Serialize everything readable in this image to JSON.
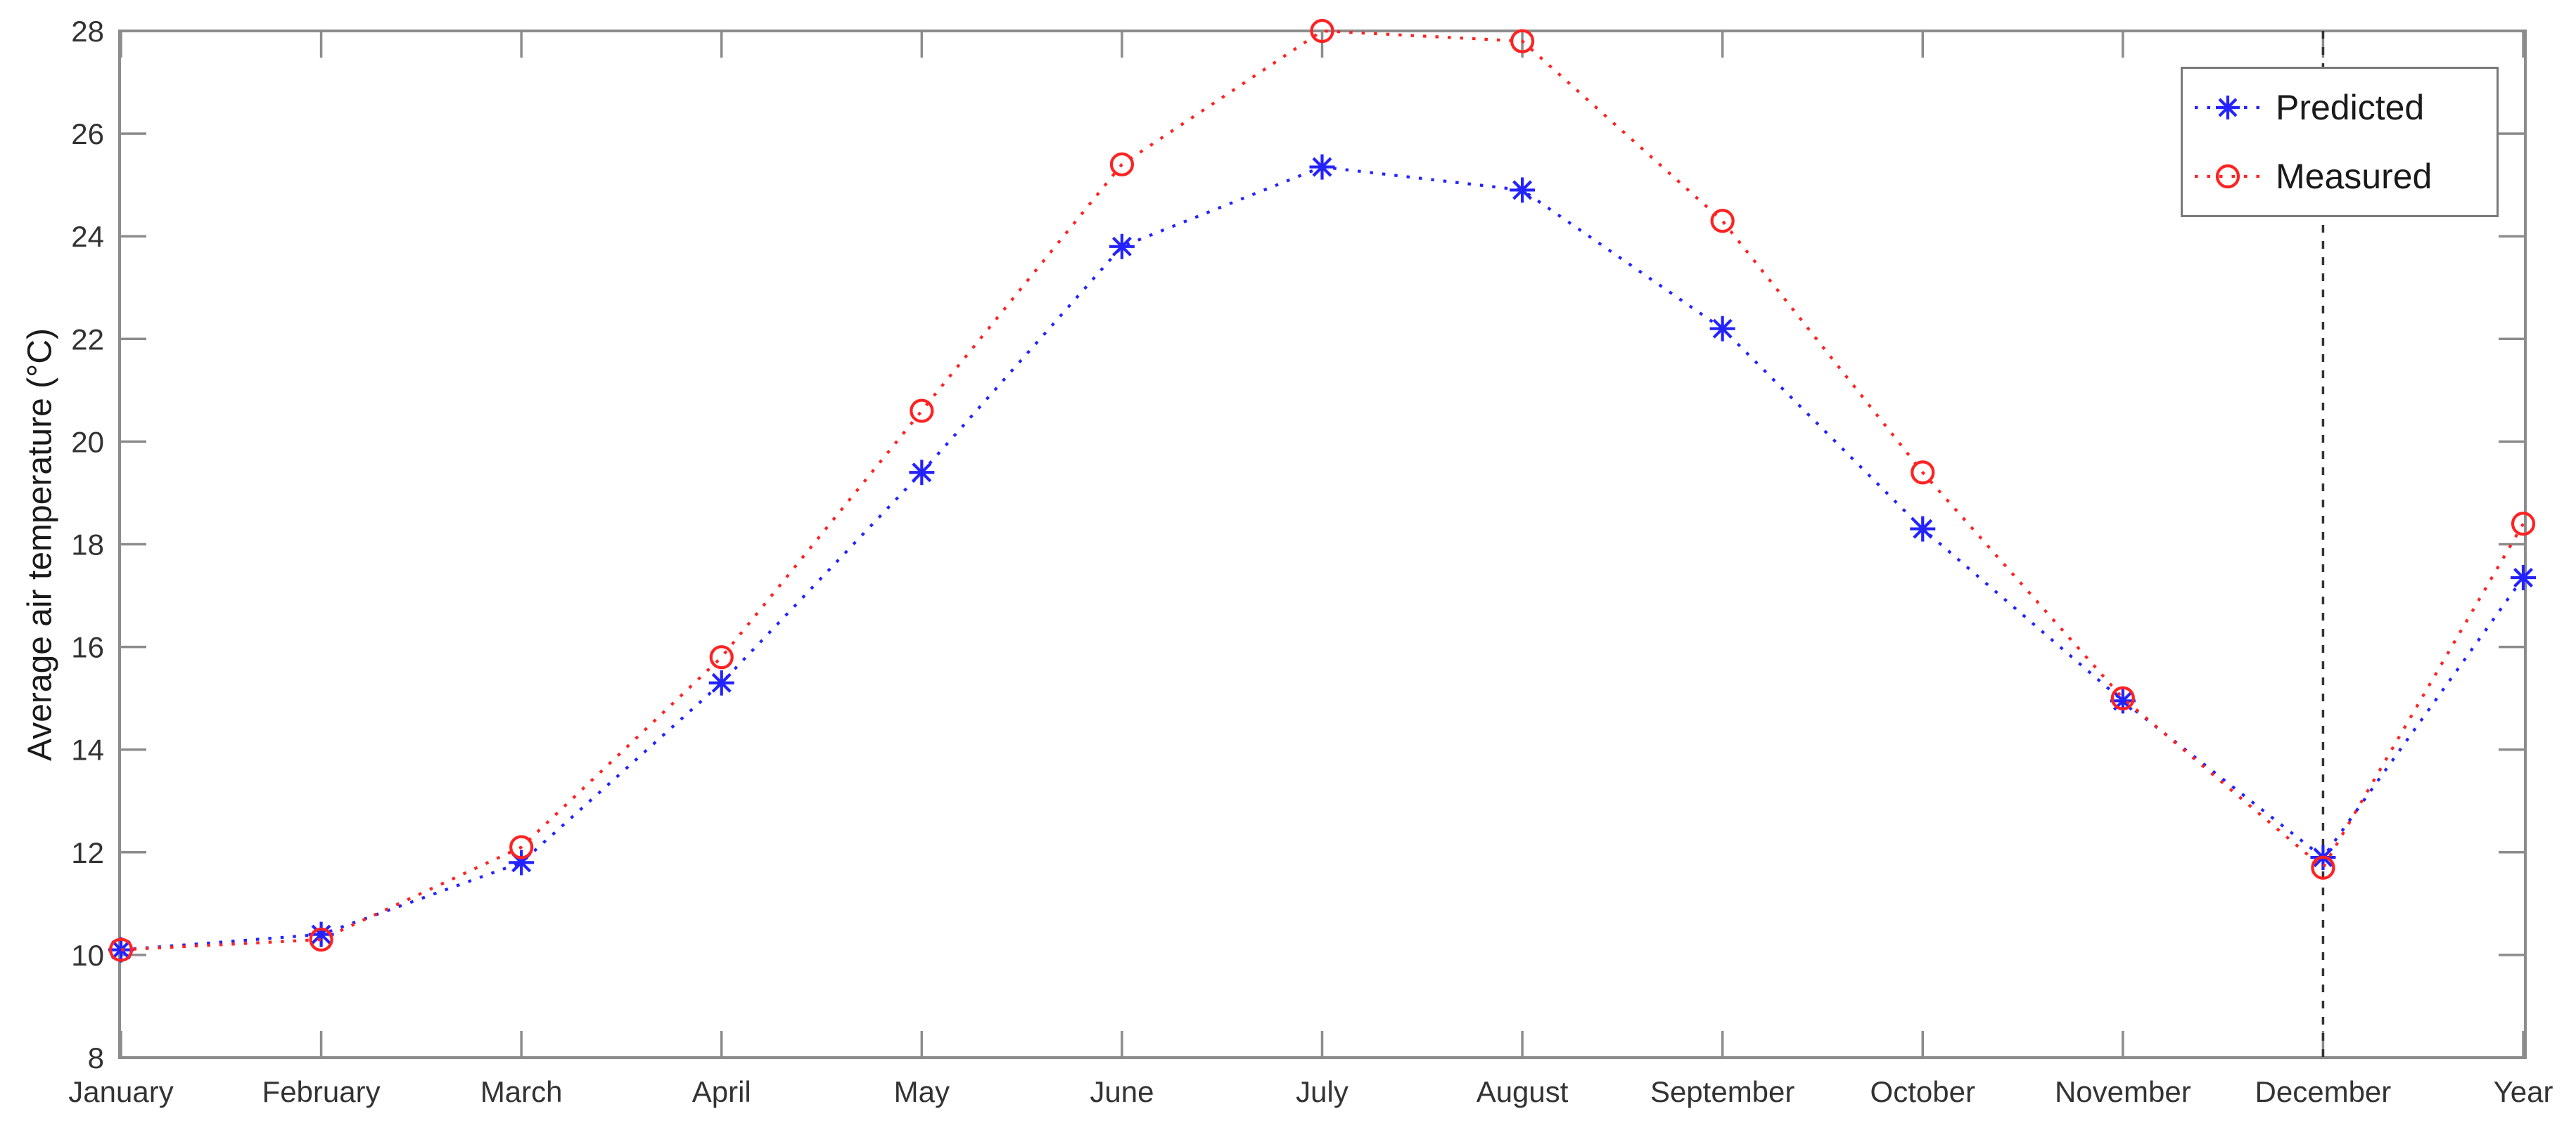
{
  "chart_data": {
    "type": "line",
    "title": "",
    "xlabel": "",
    "ylabel": "Average air temperature (°C)",
    "categories": [
      "January",
      "February",
      "March",
      "April",
      "May",
      "June",
      "July",
      "August",
      "September",
      "October",
      "November",
      "December",
      "Year"
    ],
    "series": [
      {
        "name": "Predicted",
        "color": "#2323ff",
        "marker": "asterisk",
        "linestyle": "dotted",
        "values": [
          10.1,
          10.4,
          11.8,
          15.3,
          19.4,
          23.8,
          25.35,
          24.9,
          22.2,
          18.3,
          14.95,
          11.9,
          17.35
        ]
      },
      {
        "name": "Measured",
        "color": "#ff2222",
        "marker": "circle",
        "linestyle": "dotted",
        "values": [
          10.1,
          10.3,
          12.1,
          15.8,
          20.6,
          25.4,
          28.0,
          27.8,
          24.3,
          19.4,
          15.0,
          11.7,
          18.4
        ]
      }
    ],
    "ylim": [
      8,
      28
    ],
    "yticks": [
      8,
      10,
      12,
      14,
      16,
      18,
      20,
      22,
      24,
      26,
      28
    ],
    "grid": "off",
    "legend": {
      "position": "top-right",
      "entries": [
        "Predicted",
        "Measured"
      ]
    },
    "divider": {
      "category": "December",
      "style": "dashed",
      "color": "#333333"
    },
    "frame_color": "#8c8c8c",
    "text_color": "#333333"
  }
}
